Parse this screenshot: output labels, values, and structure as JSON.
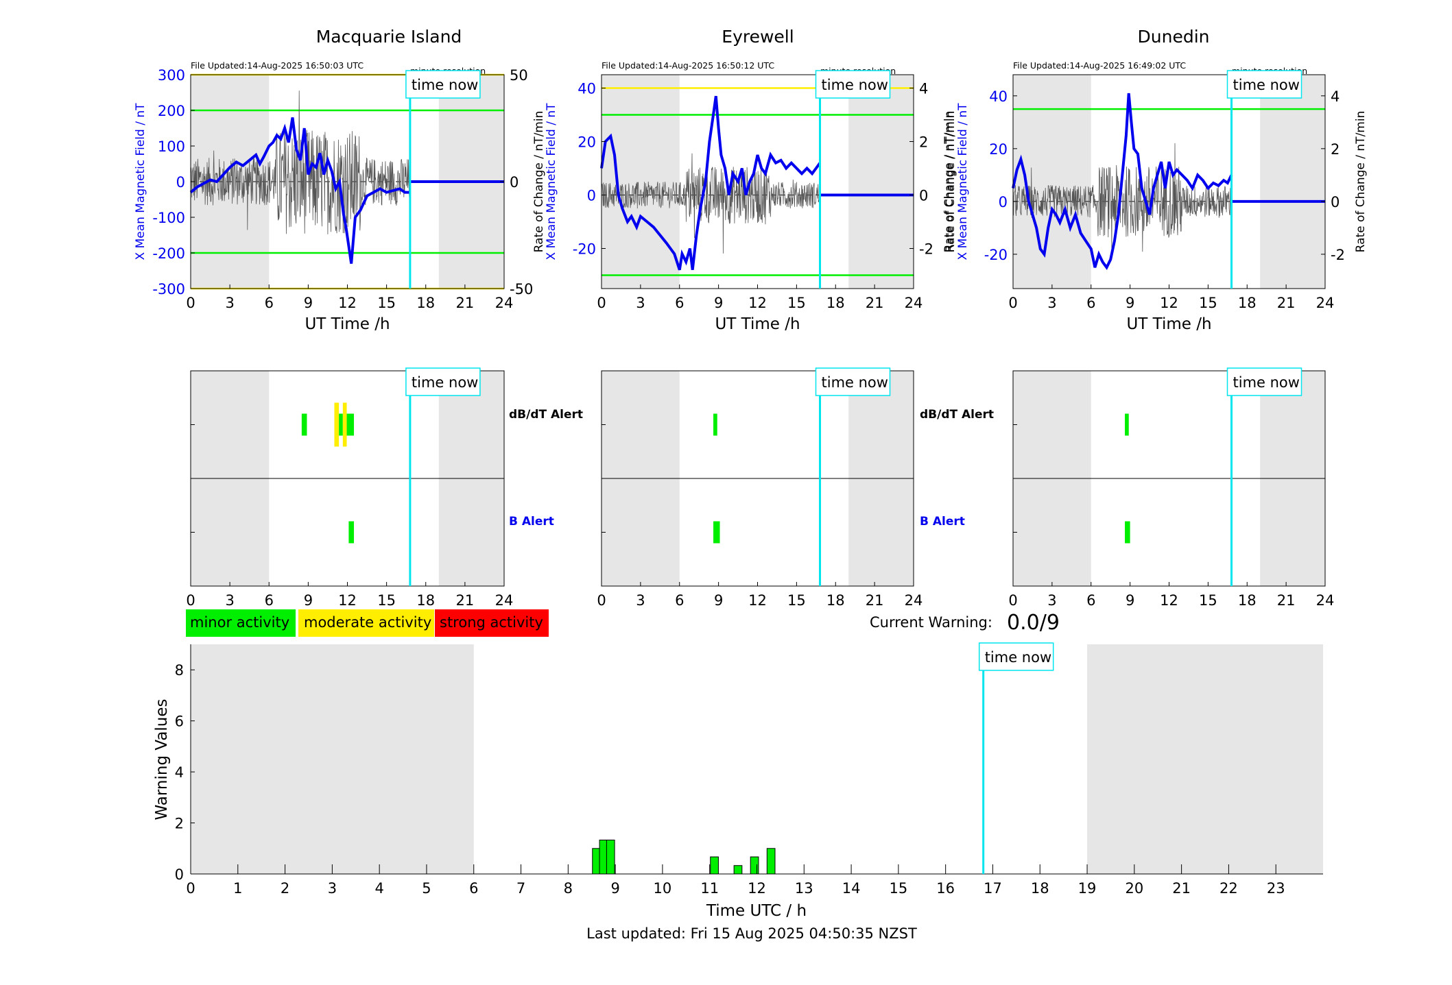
{
  "colors": {
    "night": "#e6e6e6",
    "x_field": "#0000ee",
    "rate": "#555555",
    "yellow": "#ffee00",
    "green": "#00ee00",
    "red": "#ff0000",
    "time_now": "#00e5ee"
  },
  "time_now_label": "time now",
  "x_tick_labels": [
    "0",
    "3",
    "6",
    "9",
    "12",
    "15",
    "18",
    "21",
    "24"
  ],
  "x_axis_label": "UT Time /h",
  "top_left_note": "minute resolution",
  "ylabel_left": "X Mean Magnetic Field / nT",
  "ylabel_left_prefix": "Rate of Change / nT/min",
  "ylabel_right": "Rate of Change / nT/min",
  "alert_labels": {
    "dbdt": "dB/dT Alert",
    "b": "B Alert"
  },
  "legend": {
    "minor": "minor activity",
    "moderate": "moderate activity",
    "strong": "strong activity"
  },
  "current_warning": {
    "label": "Current Warning:",
    "value": "0.0/9"
  },
  "warning_chart": {
    "ylabel": "Warning Values",
    "xlabel": "Time UTC / h",
    "y_ticks": [
      "0",
      "2",
      "4",
      "6",
      "8"
    ],
    "x_ticks": [
      "0",
      "1",
      "2",
      "3",
      "4",
      "5",
      "6",
      "7",
      "8",
      "9",
      "10",
      "11",
      "12",
      "13",
      "14",
      "15",
      "16",
      "17",
      "18",
      "19",
      "20",
      "21",
      "22",
      "23"
    ]
  },
  "last_updated": "Last updated: Fri 15 Aug 2025 04:50:35 NZST",
  "chart_data": [
    {
      "type": "line",
      "title": "Macquarie Island",
      "file_updated": "File Updated:14-Aug-2025 16:50:03 UTC",
      "xlabel": "UT Time /h",
      "xlim": [
        0,
        24
      ],
      "ylim_left": [
        -300,
        300
      ],
      "y_ticks_left": [
        "300",
        "200",
        "100",
        "0",
        "-100",
        "-200",
        "-300"
      ],
      "ylim_right": [
        -50,
        50
      ],
      "y_ticks_right": [
        "50",
        "0",
        "-50"
      ],
      "thresholds": [
        {
          "value": 300,
          "color": "yellow"
        },
        {
          "value": 200,
          "color": "green"
        },
        {
          "value": -200,
          "color": "green"
        },
        {
          "value": -300,
          "color": "yellow"
        }
      ],
      "night_shading": [
        [
          0,
          6
        ],
        [
          19,
          24
        ]
      ],
      "time_now": 16.8,
      "x_field": {
        "x": [
          0,
          0.5,
          1,
          1.5,
          2,
          2.5,
          3,
          3.5,
          4,
          4.5,
          5,
          5.3,
          5.6,
          6,
          6.3,
          6.6,
          6.9,
          7.2,
          7.5,
          7.8,
          8.1,
          8.4,
          8.7,
          9,
          9.3,
          9.6,
          9.9,
          10.2,
          10.5,
          10.8,
          11.1,
          11.4,
          11.7,
          11.9,
          12.1,
          12.3,
          12.6,
          13,
          13.5,
          14,
          14.5,
          15,
          15.5,
          16,
          16.4,
          16.8
        ],
        "y": [
          -30,
          -15,
          -5,
          5,
          0,
          20,
          40,
          55,
          45,
          60,
          75,
          50,
          70,
          100,
          110,
          130,
          120,
          150,
          110,
          180,
          90,
          60,
          150,
          20,
          50,
          40,
          80,
          20,
          60,
          30,
          -20,
          0,
          -90,
          -130,
          -180,
          -230,
          -100,
          -80,
          -40,
          -30,
          -20,
          -30,
          -25,
          -20,
          -30,
          -30
        ]
      },
      "x_field_after_now": 0,
      "rate_of_change_range": [
        -45,
        45
      ],
      "alerts": {
        "dbdt": [
          {
            "start": 8.5,
            "end": 8.9,
            "level": "minor"
          },
          {
            "start": 11.0,
            "end": 11.35,
            "level": "moderate"
          },
          {
            "start": 11.35,
            "end": 11.65,
            "level": "minor"
          },
          {
            "start": 11.65,
            "end": 11.95,
            "level": "moderate"
          },
          {
            "start": 11.95,
            "end": 12.5,
            "level": "minor"
          }
        ],
        "b": [
          {
            "start": 12.1,
            "end": 12.5,
            "level": "minor"
          }
        ]
      }
    },
    {
      "type": "line",
      "title": "Eyrewell",
      "file_updated": "File Updated:14-Aug-2025 16:50:12 UTC",
      "xlabel": "UT Time /h",
      "xlim": [
        0,
        24
      ],
      "ylim_left": [
        -35,
        45
      ],
      "y_ticks_left": [
        "40",
        "20",
        "0",
        "-20"
      ],
      "y_tick_values_left": [
        40,
        20,
        0,
        -20
      ],
      "ylim_right": [
        -3.5,
        4.5
      ],
      "y_ticks_right": [
        "4",
        "2",
        "0",
        "-2"
      ],
      "y_tick_values_right": [
        4,
        2,
        0,
        -2
      ],
      "thresholds": [
        {
          "value": 40,
          "color": "yellow"
        },
        {
          "value": 30,
          "color": "green"
        },
        {
          "value": -30,
          "color": "green"
        }
      ],
      "night_shading": [
        [
          0,
          6
        ],
        [
          19,
          24
        ]
      ],
      "time_now": 16.8,
      "x_field": {
        "x": [
          0,
          0.3,
          0.7,
          1,
          1.3,
          1.6,
          2,
          2.3,
          2.7,
          3,
          3.5,
          4,
          4.5,
          5,
          5.3,
          5.6,
          5.8,
          6,
          6.2,
          6.5,
          6.8,
          7,
          7.3,
          7.6,
          8,
          8.3,
          8.6,
          8.8,
          9,
          9.2,
          9.5,
          9.8,
          10.1,
          10.5,
          10.8,
          11.1,
          11.4,
          11.7,
          12,
          12.3,
          12.6,
          13,
          13.4,
          13.8,
          14.2,
          14.6,
          15,
          15.4,
          15.8,
          16.2,
          16.5,
          16.8
        ],
        "y": [
          10,
          20,
          22,
          15,
          0,
          -5,
          -10,
          -8,
          -12,
          -8,
          -10,
          -12,
          -15,
          -18,
          -20,
          -22,
          -25,
          -28,
          -22,
          -25,
          -20,
          -28,
          -15,
          -5,
          5,
          20,
          30,
          37,
          25,
          15,
          10,
          0,
          8,
          5,
          10,
          0,
          5,
          8,
          15,
          10,
          8,
          15,
          12,
          13,
          10,
          12,
          10,
          8,
          10,
          8,
          10,
          12
        ]
      },
      "x_field_after_now": 0,
      "rate_of_change_range": [
        -2,
        2
      ],
      "alerts": {
        "dbdt": [
          {
            "start": 8.6,
            "end": 8.9,
            "level": "minor"
          }
        ],
        "b": [
          {
            "start": 8.6,
            "end": 9.1,
            "level": "minor"
          }
        ]
      }
    },
    {
      "type": "line",
      "title": "Dunedin",
      "file_updated": "File Updated:14-Aug-2025 16:49:02 UTC",
      "xlabel": "UT Time /h",
      "xlim": [
        0,
        24
      ],
      "ylim_left": [
        -33,
        48
      ],
      "y_ticks_left": [
        "40",
        "20",
        "0",
        "-20"
      ],
      "y_tick_values_left": [
        40,
        20,
        0,
        -20
      ],
      "ylim_right": [
        -3.3,
        4.8
      ],
      "y_ticks_right": [
        "4",
        "2",
        "0",
        "-2"
      ],
      "y_tick_values_right": [
        4,
        2,
        0,
        -2
      ],
      "thresholds": [
        {
          "value": 35,
          "color": "green"
        }
      ],
      "night_shading": [
        [
          0,
          6
        ],
        [
          19,
          24
        ]
      ],
      "time_now": 16.8,
      "x_field": {
        "x": [
          0,
          0.3,
          0.6,
          0.9,
          1.2,
          1.5,
          1.8,
          2.1,
          2.4,
          2.7,
          3,
          3.3,
          3.6,
          4,
          4.4,
          4.8,
          5.2,
          5.6,
          6,
          6.3,
          6.6,
          6.9,
          7.2,
          7.5,
          7.8,
          8.1,
          8.4,
          8.7,
          8.9,
          9.1,
          9.3,
          9.6,
          9.9,
          10.2,
          10.5,
          10.8,
          11.1,
          11.4,
          11.7,
          12,
          12.3,
          12.6,
          13,
          13.4,
          13.8,
          14.2,
          14.6,
          15,
          15.4,
          15.8,
          16.2,
          16.5,
          16.8
        ],
        "y": [
          5,
          12,
          16,
          10,
          0,
          -5,
          -10,
          -18,
          -20,
          -10,
          -3,
          -5,
          -8,
          -3,
          -10,
          -5,
          -12,
          -15,
          -18,
          -25,
          -20,
          -23,
          -25,
          -22,
          -15,
          -5,
          10,
          25,
          41,
          30,
          20,
          18,
          5,
          0,
          -5,
          5,
          10,
          15,
          5,
          15,
          10,
          12,
          10,
          8,
          5,
          10,
          8,
          5,
          7,
          6,
          8,
          7,
          10
        ]
      },
      "x_field_after_now": 0,
      "rate_of_change_range": [
        -2.5,
        2.5
      ],
      "alerts": {
        "dbdt": [
          {
            "start": 8.6,
            "end": 8.9,
            "level": "minor"
          }
        ],
        "b": [
          {
            "start": 8.6,
            "end": 9.0,
            "level": "minor"
          }
        ]
      }
    },
    {
      "type": "bar",
      "title": "",
      "xlabel": "Time UTC / h",
      "ylabel": "Warning Values",
      "xlim": [
        0,
        24
      ],
      "ylim": [
        0,
        9
      ],
      "night_shading": [
        [
          0,
          6
        ],
        [
          19,
          24
        ]
      ],
      "time_now": 16.8,
      "bar_width": 0.17,
      "x": [
        8.6,
        8.75,
        8.9,
        11.1,
        11.6,
        11.95,
        12.3
      ],
      "values": [
        1.0,
        1.33,
        1.33,
        0.67,
        0.33,
        0.67,
        1.0
      ]
    }
  ]
}
